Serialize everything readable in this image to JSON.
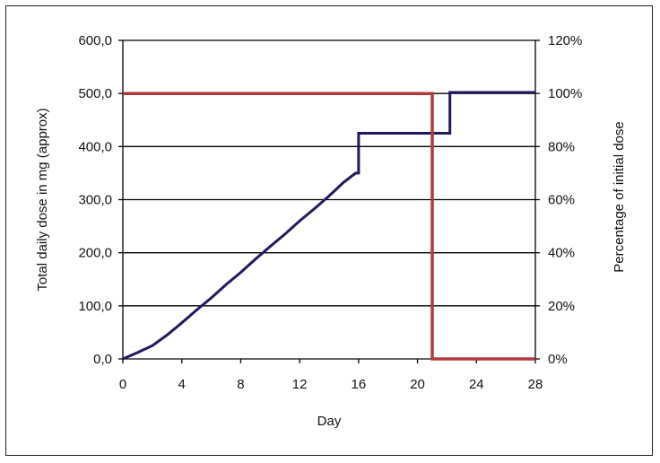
{
  "chart_data": {
    "type": "line",
    "xlabel": "Day",
    "ylabel": "Total daily dose in mg (approx)",
    "y2label": "Percentage of initial dose",
    "xlim": [
      0,
      28
    ],
    "ylim": [
      0,
      600
    ],
    "y2lim": [
      0,
      1.2
    ],
    "x_ticks": [
      "0",
      "4",
      "8",
      "12",
      "16",
      "20",
      "24",
      "28"
    ],
    "x_tick_values": [
      0,
      4,
      8,
      12,
      16,
      20,
      24,
      28
    ],
    "y_ticks": [
      "0,0",
      "100,0",
      "200,0",
      "300,0",
      "400,0",
      "500,0",
      "600,0"
    ],
    "y_tick_values": [
      0,
      100,
      200,
      300,
      400,
      500,
      600
    ],
    "y2_ticks": [
      "0%",
      "20%",
      "40%",
      "60%",
      "80%",
      "100%",
      "120%"
    ],
    "y2_tick_values": [
      0,
      0.2,
      0.4,
      0.6,
      0.8,
      1.0,
      1.2
    ],
    "grid": "horizontal",
    "series": [
      {
        "axis": "left",
        "color": "#1f1a5e",
        "x": [
          0,
          1,
          2,
          3,
          4,
          5,
          6,
          7,
          8,
          9,
          10,
          11,
          12,
          13,
          14,
          15,
          15.8,
          15.8,
          16,
          16,
          21.9,
          22.2,
          22.2,
          28
        ],
        "y": [
          0,
          12,
          25,
          45,
          68,
          92,
          115,
          140,
          163,
          188,
          212,
          235,
          260,
          283,
          307,
          333,
          350,
          350,
          350,
          425,
          425,
          425,
          502,
          502
        ]
      },
      {
        "axis": "right",
        "color": "#b03a3a",
        "x": [
          0,
          21.0,
          21.0,
          28
        ],
        "y": [
          1.0,
          1.0,
          0,
          0
        ]
      }
    ]
  }
}
